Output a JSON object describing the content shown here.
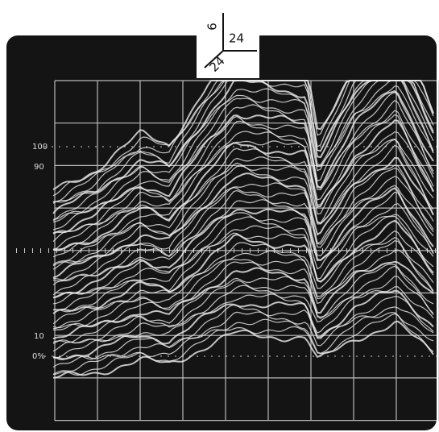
{
  "axis_indicator": {
    "vertical": "6",
    "horizontal": "24",
    "diagonal": "24"
  },
  "scale_labels": [
    "100",
    "90",
    "10",
    "0%"
  ]
}
